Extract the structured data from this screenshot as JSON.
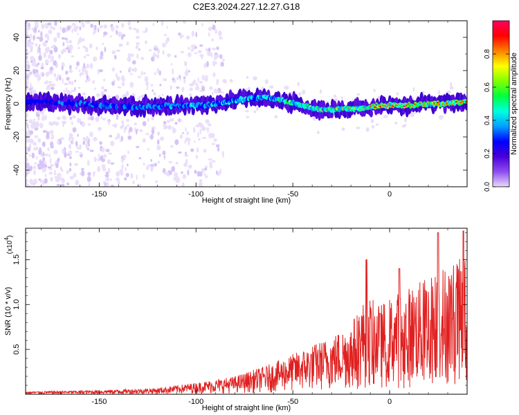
{
  "figure": {
    "title": "C2E3.2024.227.12.27.G18"
  },
  "chart_data": [
    {
      "type": "heatmap",
      "xlabel": "Height of straight line (km)",
      "ylabel": "Frequency (Hz)",
      "xlim": [
        -188,
        40
      ],
      "ylim": [
        -50,
        50
      ],
      "xticks": [
        -150,
        -100,
        -50,
        0
      ],
      "yticks": [
        -40,
        -20,
        0,
        20,
        40
      ],
      "colorbar": {
        "label": "Normalized spectral amplitude",
        "range": [
          0.0,
          1.0
        ],
        "ticks": [
          "0.0",
          "0.2",
          "0.4",
          "0.6",
          "0.8"
        ],
        "colors": [
          "#e8dcf8",
          "#8f4cf0",
          "#4a00d8",
          "#0000ff",
          "#00a0ff",
          "#00ffe0",
          "#00ff40",
          "#80ff00",
          "#ffff00",
          "#ff8000",
          "#ff0000",
          "#ff0060"
        ]
      },
      "ridge": [
        {
          "x": -188,
          "f": 1
        },
        {
          "x": -170,
          "f": 1
        },
        {
          "x": -150,
          "f": -1
        },
        {
          "x": -130,
          "f": -2
        },
        {
          "x": -110,
          "f": -1
        },
        {
          "x": -95,
          "f": -1
        },
        {
          "x": -80,
          "f": 2
        },
        {
          "x": -65,
          "f": 4
        },
        {
          "x": -55,
          "f": 2
        },
        {
          "x": -45,
          "f": -1
        },
        {
          "x": -35,
          "f": -4
        },
        {
          "x": -25,
          "f": -3
        },
        {
          "x": -15,
          "f": -3
        },
        {
          "x": -5,
          "f": -1
        },
        {
          "x": 10,
          "f": -1
        },
        {
          "x": 25,
          "f": 0
        },
        {
          "x": 40,
          "f": 1
        }
      ]
    },
    {
      "type": "line",
      "xlabel": "Height of straight line (km)",
      "ylabel": "SNR (10 * v/v)",
      "scale_label": "(x10",
      "scale_exp": "4",
      "xlim": [
        -188,
        40
      ],
      "ylim": [
        0,
        18500
      ],
      "xticks": [
        -150,
        -100,
        -50,
        0
      ],
      "yticks": [
        5000,
        10000,
        15000
      ],
      "ytick_labels": [
        "0.5",
        "1.0",
        "1.5"
      ],
      "series": [
        {
          "color": "#e02020",
          "envelope": [
            {
              "x": -188,
              "v": 300
            },
            {
              "x": -150,
              "v": 450
            },
            {
              "x": -120,
              "v": 700
            },
            {
              "x": -100,
              "v": 1300
            },
            {
              "x": -80,
              "v": 2000
            },
            {
              "x": -60,
              "v": 3500
            },
            {
              "x": -45,
              "v": 5000
            },
            {
              "x": -30,
              "v": 6500
            },
            {
              "x": -20,
              "v": 8000
            },
            {
              "x": -12,
              "v": 11000
            },
            {
              "x": -5,
              "v": 10000
            },
            {
              "x": 5,
              "v": 11500
            },
            {
              "x": 15,
              "v": 12500
            },
            {
              "x": 25,
              "v": 14000
            },
            {
              "x": 35,
              "v": 15000
            },
            {
              "x": 40,
              "v": 15500
            }
          ],
          "peaks": [
            {
              "x": -12,
              "v": 15000
            },
            {
              "x": 25,
              "v": 18000
            },
            {
              "x": 38,
              "v": 18200
            },
            {
              "x": 5,
              "v": 14000
            },
            {
              "x": -5,
              "v": 9000
            }
          ]
        }
      ]
    }
  ]
}
